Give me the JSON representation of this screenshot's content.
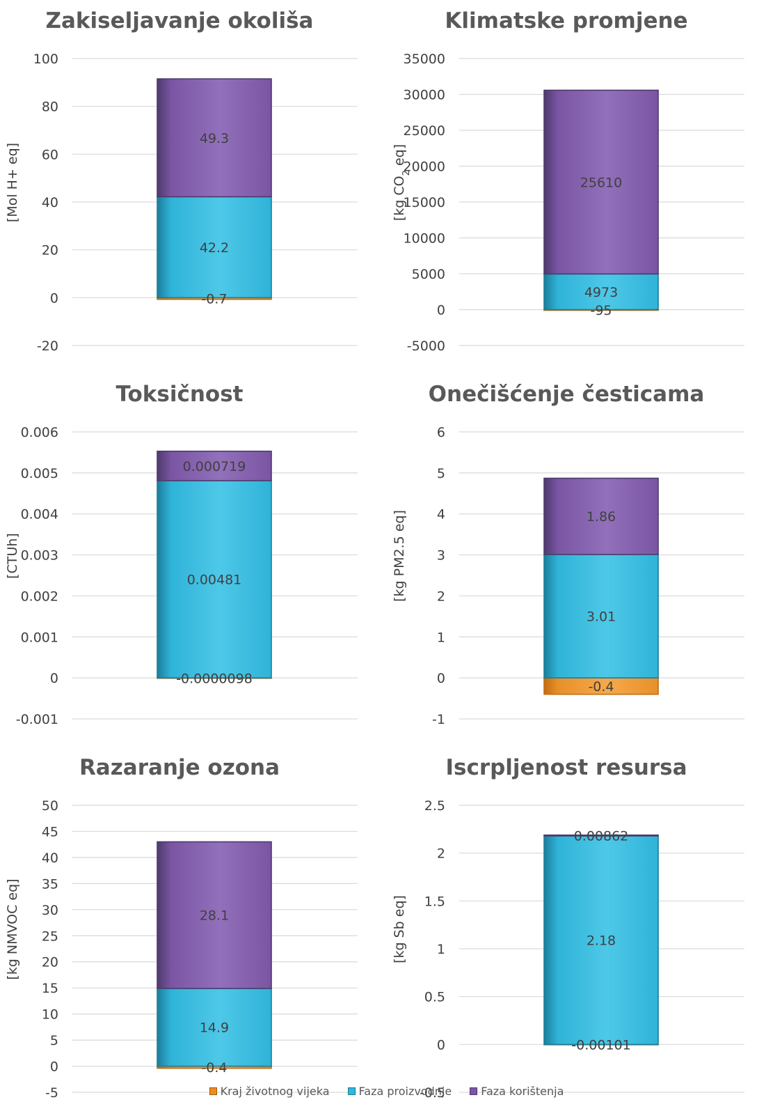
{
  "legend": [
    {
      "name": "Kraj životnog vijeka",
      "color": "#f08c1e"
    },
    {
      "name": "Faza proizvodnje",
      "color": "#2fb8dc"
    },
    {
      "name": "Faza korištenja",
      "color": "#7d56a6"
    }
  ],
  "chart_data": [
    {
      "type": "bar",
      "stacked": true,
      "title": "Zakiseljavanje okoliša",
      "ylabel": "[Mol H+ eq]",
      "ylim": [
        -20,
        100
      ],
      "yticks": [
        -20,
        0,
        20,
        40,
        60,
        80,
        100
      ],
      "ytick_labels": [
        "-20",
        "0",
        "20",
        "40",
        "60",
        "80",
        "100"
      ],
      "grid": true,
      "series": [
        {
          "name": "Kraj životnog vijeka",
          "value": -0.7,
          "label": "-0.7"
        },
        {
          "name": "Faza proizvodnje",
          "value": 42.2,
          "label": "42.2"
        },
        {
          "name": "Faza korištenja",
          "value": 49.3,
          "label": "49.3"
        }
      ]
    },
    {
      "type": "bar",
      "stacked": true,
      "title": "Klimatske promjene",
      "ylabel": "[kg CO2 eq]",
      "ylim": [
        -5000,
        35000
      ],
      "yticks": [
        -5000,
        0,
        5000,
        10000,
        15000,
        20000,
        25000,
        30000,
        35000
      ],
      "ytick_labels": [
        "-5000",
        "0",
        "5000",
        "10000",
        "15000",
        "20000",
        "25000",
        "30000",
        "35000"
      ],
      "grid": true,
      "series": [
        {
          "name": "Kraj životnog vijeka",
          "value": -95,
          "label": "-95"
        },
        {
          "name": "Faza proizvodnje",
          "value": 4973,
          "label": "4973"
        },
        {
          "name": "Faza korištenja",
          "value": 25610,
          "label": "25610"
        }
      ]
    },
    {
      "type": "bar",
      "stacked": true,
      "title": "Toksičnost",
      "ylabel": "[CTUh]",
      "ylim": [
        -0.001,
        0.006
      ],
      "yticks": [
        -0.001,
        0,
        0.001,
        0.002,
        0.003,
        0.004,
        0.005,
        0.006
      ],
      "ytick_labels": [
        "-0.001",
        "0",
        "0.001",
        "0.002",
        "0.003",
        "0.004",
        "0.005",
        "0.006"
      ],
      "grid": true,
      "series": [
        {
          "name": "Kraj životnog vijeka",
          "value": -9.8e-06,
          "label": "-0.0000098"
        },
        {
          "name": "Faza proizvodnje",
          "value": 0.00481,
          "label": "0.00481"
        },
        {
          "name": "Faza korištenja",
          "value": 0.000719,
          "label": "0.000719"
        }
      ]
    },
    {
      "type": "bar",
      "stacked": true,
      "title": "Onečišćenje česticama",
      "ylabel": "[kg PM2.5 eq]",
      "ylim": [
        -1,
        6
      ],
      "yticks": [
        -1,
        0,
        1,
        2,
        3,
        4,
        5,
        6
      ],
      "ytick_labels": [
        "-1",
        "0",
        "1",
        "2",
        "3",
        "4",
        "5",
        "6"
      ],
      "grid": true,
      "series": [
        {
          "name": "Kraj životnog vijeka",
          "value": -0.4,
          "label": "-0.4"
        },
        {
          "name": "Faza proizvodnje",
          "value": 3.01,
          "label": "3.01"
        },
        {
          "name": "Faza korištenja",
          "value": 1.86,
          "label": "1.86"
        }
      ]
    },
    {
      "type": "bar",
      "stacked": true,
      "title": "Razaranje ozona",
      "ylabel": "[kg NMVOC eq]",
      "ylim": [
        -5,
        50
      ],
      "yticks": [
        -5,
        0,
        5,
        10,
        15,
        20,
        25,
        30,
        35,
        40,
        45,
        50
      ],
      "ytick_labels": [
        "-5",
        "0",
        "5",
        "10",
        "15",
        "20",
        "25",
        "30",
        "35",
        "40",
        "45",
        "50"
      ],
      "grid": true,
      "series": [
        {
          "name": "Kraj životnog vijeka",
          "value": -0.4,
          "label": "-0.4"
        },
        {
          "name": "Faza proizvodnje",
          "value": 14.9,
          "label": "14.9"
        },
        {
          "name": "Faza korištenja",
          "value": 28.1,
          "label": "28.1"
        }
      ]
    },
    {
      "type": "bar",
      "stacked": true,
      "title": "Iscrpljenost resursa",
      "ylabel": "[kg Sb eq]",
      "ylim": [
        -0.5,
        2.5
      ],
      "yticks": [
        -0.5,
        0,
        0.5,
        1,
        1.5,
        2,
        2.5
      ],
      "ytick_labels": [
        "-0.5",
        "0",
        "0.5",
        "1",
        "1.5",
        "2",
        "2.5"
      ],
      "grid": true,
      "series": [
        {
          "name": "Kraj životnog vijeka",
          "value": -0.00101,
          "label": "-0.00101"
        },
        {
          "name": "Faza proizvodnje",
          "value": 2.18,
          "label": "2.18"
        },
        {
          "name": "Faza korištenja",
          "value": 0.00862,
          "label": "0.00862"
        }
      ]
    }
  ]
}
